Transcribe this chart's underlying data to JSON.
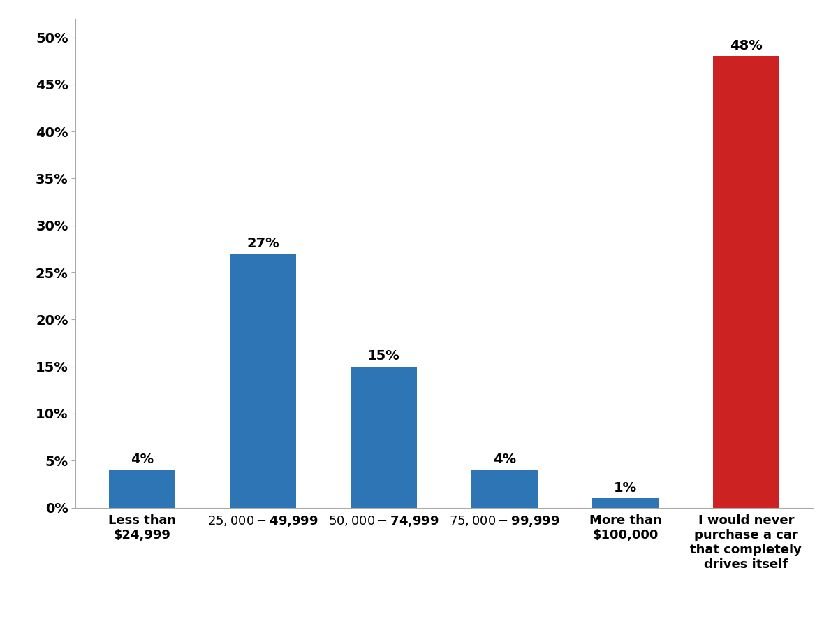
{
  "categories": [
    "Less than\n$24,999",
    "$25,000 - $49,999",
    "$50,000 - $74,999",
    "$75,000 - $99,999",
    "More than\n$100,000",
    "I would never\npurchase a car\nthat completely\ndrives itself"
  ],
  "values": [
    4,
    27,
    15,
    4,
    1,
    48
  ],
  "bar_colors": [
    "#2e75b6",
    "#2e75b6",
    "#2e75b6",
    "#2e75b6",
    "#2e75b6",
    "#cc2222"
  ],
  "labels": [
    "4%",
    "27%",
    "15%",
    "4%",
    "1%",
    "48%"
  ],
  "ylim": [
    0,
    52
  ],
  "yticks": [
    0,
    5,
    10,
    15,
    20,
    25,
    30,
    35,
    40,
    45,
    50
  ],
  "ytick_labels": [
    "0%",
    "5%",
    "10%",
    "15%",
    "20%",
    "25%",
    "30%",
    "35%",
    "40%",
    "45%",
    "50%"
  ],
  "background_color": "#ffffff",
  "bar_label_fontsize": 14,
  "tick_fontsize": 14,
  "xlabel_fontsize": 13,
  "bar_width": 0.55
}
